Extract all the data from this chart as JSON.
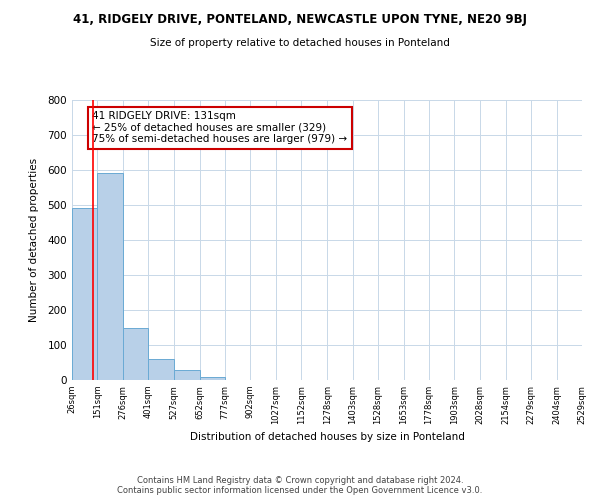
{
  "title_main": "41, RIDGELY DRIVE, PONTELAND, NEWCASTLE UPON TYNE, NE20 9BJ",
  "title_sub": "Size of property relative to detached houses in Ponteland",
  "xlabel": "Distribution of detached houses by size in Ponteland",
  "ylabel": "Number of detached properties",
  "bar_edges": [
    26,
    151,
    276,
    401,
    527,
    652,
    777,
    902,
    1027,
    1152,
    1278,
    1403,
    1528,
    1653,
    1778,
    1903,
    2028,
    2154,
    2279,
    2404,
    2529
  ],
  "bar_heights": [
    490,
    590,
    150,
    60,
    30,
    8,
    0,
    0,
    0,
    0,
    0,
    0,
    0,
    0,
    0,
    0,
    0,
    0,
    0,
    0
  ],
  "bar_color": "#b8d0e8",
  "bar_edge_color": "#6aaad4",
  "red_line_x": 131,
  "ylim": [
    0,
    800
  ],
  "annotation_text": "41 RIDGELY DRIVE: 131sqm\n← 25% of detached houses are smaller (329)\n75% of semi-detached houses are larger (979) →",
  "annotation_box_color": "#ffffff",
  "annotation_box_edge_color": "#cc0000",
  "footer_text": "Contains HM Land Registry data © Crown copyright and database right 2024.\nContains public sector information licensed under the Open Government Licence v3.0.",
  "tick_labels": [
    "26sqm",
    "151sqm",
    "276sqm",
    "401sqm",
    "527sqm",
    "652sqm",
    "777sqm",
    "902sqm",
    "1027sqm",
    "1152sqm",
    "1278sqm",
    "1403sqm",
    "1528sqm",
    "1653sqm",
    "1778sqm",
    "1903sqm",
    "2028sqm",
    "2154sqm",
    "2279sqm",
    "2404sqm",
    "2529sqm"
  ],
  "background_color": "#ffffff",
  "grid_color": "#c8d8e8"
}
